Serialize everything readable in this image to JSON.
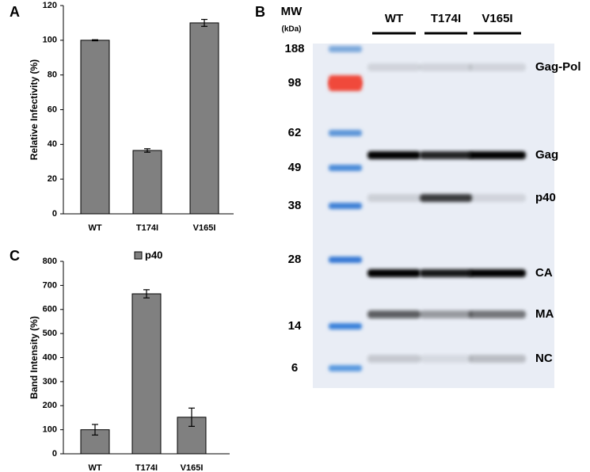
{
  "chart_data": [
    {
      "type": "bar",
      "panel_label": "A",
      "y_label": "Relative Infectivity (%)",
      "categories": [
        "WT",
        "T174I",
        "V165I"
      ],
      "series": [
        {
          "color": "#808080",
          "values": [
            100,
            36.5,
            110
          ],
          "errors": [
            0.3,
            1,
            2
          ]
        }
      ],
      "ylim": [
        0,
        120
      ],
      "yticks": [
        0,
        20,
        40,
        60,
        80,
        100,
        120
      ]
    },
    {
      "type": "bar",
      "panel_label": "C",
      "y_label": "Band Intensity (%)",
      "categories": [
        "WT",
        "T174I",
        "V165I"
      ],
      "series": [
        {
          "name": "p40",
          "color": "#808080",
          "values": [
            100,
            665,
            152
          ],
          "errors": [
            22,
            17,
            38
          ]
        }
      ],
      "ylim": [
        0,
        800
      ],
      "yticks": [
        0,
        100,
        200,
        300,
        400,
        500,
        600,
        700,
        800
      ],
      "legend": "top"
    }
  ],
  "blot": {
    "panel_label": "B",
    "mw_label": "MW",
    "unit_label": "(kDa)",
    "markers": [
      188,
      98,
      62,
      49,
      38,
      28,
      14,
      6
    ],
    "lanes": [
      "WT",
      "T174I",
      "V165I"
    ],
    "bands": [
      "Gag-Pol",
      "Gag",
      "p40",
      "CA",
      "MA",
      "NC"
    ]
  }
}
